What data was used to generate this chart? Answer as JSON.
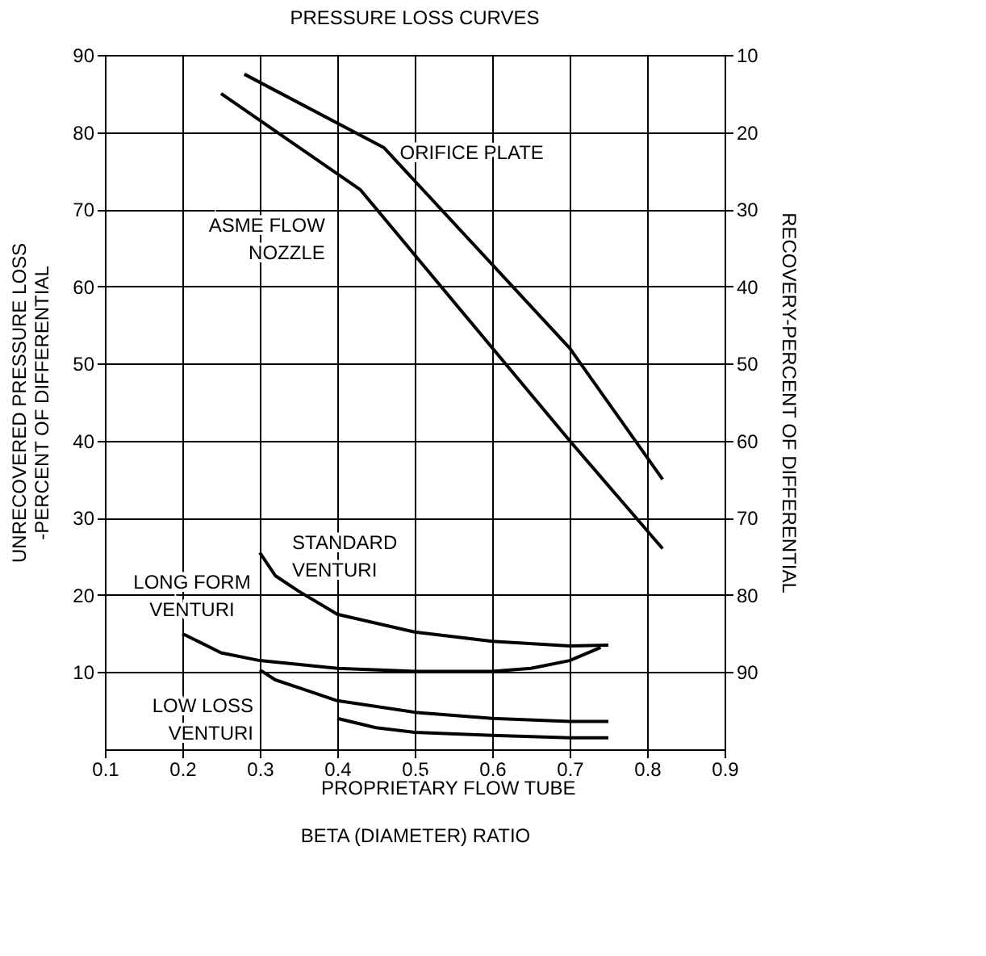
{
  "chart_data": {
    "type": "line",
    "title": "PRESSURE LOSS CURVES",
    "xlabel": "BETA (DIAMETER) RATIO",
    "ylabel": "UNRECOVERED PRESSURE LOSS\n-PERCENT OF DIFFERENTIAL",
    "y2label": "RECOVERY-PERCENT OF DIFFERENTIAL",
    "xlim": [
      0.1,
      0.9
    ],
    "xticks": [
      0.1,
      0.2,
      0.3,
      0.4,
      0.5,
      0.6,
      0.7,
      0.8,
      0.9
    ],
    "ylim": [
      0,
      90
    ],
    "yticks": [
      10,
      20,
      30,
      40,
      50,
      60,
      70,
      80,
      90
    ],
    "y2lim": [
      100,
      10
    ],
    "y2ticks": [
      10,
      20,
      30,
      40,
      50,
      60,
      70,
      80,
      90
    ],
    "grid": true,
    "marker": "none",
    "line_style": "solid",
    "series": [
      {
        "name": "ORIFICE PLATE",
        "color": "#000000",
        "x": [
          0.28,
          0.46,
          0.7,
          0.82
        ],
        "values": [
          87.5,
          78,
          52,
          35
        ]
      },
      {
        "name": "ASME FLOW\nNOZZLE",
        "color": "#000000",
        "x": [
          0.25,
          0.43,
          0.7,
          0.82
        ],
        "values": [
          85,
          72.5,
          40,
          26
        ]
      },
      {
        "name": "STANDARD\nVENTURI",
        "color": "#000000",
        "x": [
          0.3,
          0.32,
          0.35,
          0.4,
          0.5,
          0.6,
          0.7,
          0.75
        ],
        "values": [
          25.5,
          22.5,
          20.5,
          17.5,
          15.2,
          14,
          13.4,
          13.5
        ]
      },
      {
        "name": "LONG FORM\nVENTURI",
        "color": "#000000",
        "x": [
          0.2,
          0.25,
          0.3,
          0.4,
          0.5,
          0.6,
          0.65,
          0.7,
          0.74
        ],
        "values": [
          15,
          12.5,
          11.5,
          10.5,
          10.1,
          10.1,
          10.5,
          11.5,
          13.2
        ]
      },
      {
        "name": "LOW LOSS\nVENTURI",
        "color": "#000000",
        "x": [
          0.3,
          0.32,
          0.35,
          0.4,
          0.5,
          0.6,
          0.7,
          0.75
        ],
        "values": [
          10.3,
          9,
          8,
          6.3,
          4.8,
          4,
          3.6,
          3.6
        ]
      },
      {
        "name": "PROPRIETARY FLOW TUBE",
        "color": "#000000",
        "x": [
          0.4,
          0.45,
          0.5,
          0.6,
          0.7,
          0.75
        ],
        "values": [
          4,
          2.8,
          2.2,
          1.8,
          1.5,
          1.5
        ]
      }
    ]
  }
}
